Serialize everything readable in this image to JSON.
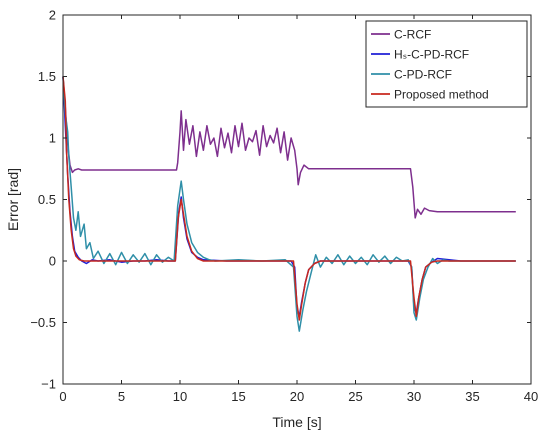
{
  "chart_data": {
    "type": "line",
    "xlabel": "Time [s]",
    "ylabel": "Error [rad]",
    "xlim": [
      0,
      40
    ],
    "ylim": [
      -1,
      2
    ],
    "xticks": [
      0,
      5,
      10,
      15,
      20,
      25,
      30,
      35,
      40
    ],
    "yticks": [
      -1,
      -0.5,
      0,
      0.5,
      1,
      1.5,
      2
    ],
    "xtick_labels": [
      "0",
      "5",
      "10",
      "15",
      "20",
      "25",
      "30",
      "35",
      "40"
    ],
    "ytick_labels": [
      "−1",
      "−0.5",
      "0",
      "0.5",
      "1",
      "1.5",
      "2"
    ],
    "grid": false,
    "legend_position": "top-right",
    "series": [
      {
        "name": "C-RCF",
        "color": "#7E2F8E",
        "x": [
          0,
          0.2,
          0.4,
          0.6,
          0.8,
          1.0,
          1.3,
          1.6,
          2.0,
          3,
          4,
          5,
          6,
          7,
          8,
          9,
          9.7,
          9.8,
          10.0,
          10.1,
          10.3,
          10.5,
          10.8,
          11.1,
          11.4,
          11.7,
          12.0,
          12.3,
          12.6,
          12.9,
          13.2,
          13.5,
          13.8,
          14.1,
          14.4,
          14.7,
          15.0,
          15.3,
          15.6,
          15.9,
          16.2,
          16.5,
          16.8,
          17.1,
          17.4,
          17.7,
          18.0,
          18.3,
          18.6,
          18.9,
          19.2,
          19.5,
          19.8,
          20.0,
          20.1,
          20.3,
          20.6,
          21.0,
          22,
          24,
          26,
          28,
          29,
          29.7,
          29.9,
          30.1,
          30.3,
          30.6,
          30.9,
          31.3,
          32,
          34,
          36,
          38,
          38.7
        ],
        "y": [
          1.5,
          1.25,
          0.95,
          0.78,
          0.72,
          0.74,
          0.75,
          0.74,
          0.74,
          0.74,
          0.74,
          0.74,
          0.74,
          0.74,
          0.74,
          0.74,
          0.74,
          0.8,
          1.05,
          1.22,
          0.9,
          1.15,
          0.95,
          1.1,
          0.85,
          1.05,
          0.9,
          1.1,
          0.95,
          1.0,
          0.85,
          1.08,
          0.92,
          1.04,
          0.88,
          1.1,
          0.93,
          1.12,
          0.9,
          1.0,
          0.97,
          1.06,
          0.86,
          1.1,
          0.93,
          1.02,
          0.96,
          1.08,
          0.88,
          1.05,
          0.82,
          1.0,
          0.9,
          0.75,
          0.62,
          0.72,
          0.78,
          0.75,
          0.75,
          0.75,
          0.75,
          0.75,
          0.75,
          0.75,
          0.6,
          0.35,
          0.42,
          0.38,
          0.43,
          0.41,
          0.4,
          0.4,
          0.4,
          0.4,
          0.4
        ]
      },
      {
        "name": "Hₛ-C-PD-RCF",
        "color": "#1F1FD6",
        "x": [
          0,
          0.2,
          0.4,
          0.6,
          0.8,
          1.0,
          1.3,
          1.6,
          2.0,
          2.5,
          3,
          4,
          5,
          6,
          7,
          8,
          9,
          9.6,
          9.9,
          10.1,
          10.3,
          10.6,
          11.0,
          11.5,
          12,
          14,
          16,
          18,
          19.5,
          19.8,
          20.0,
          20.2,
          20.4,
          20.7,
          21.0,
          21.5,
          22,
          24,
          26,
          28,
          29.5,
          29.8,
          30.0,
          30.2,
          30.4,
          30.7,
          31.0,
          31.5,
          32,
          34,
          36,
          38,
          38.7
        ],
        "y": [
          1.5,
          1.1,
          0.7,
          0.4,
          0.2,
          0.08,
          0.03,
          0.0,
          -0.02,
          0.01,
          0.0,
          0.01,
          -0.01,
          0.0,
          0.0,
          0.01,
          0.0,
          0.0,
          0.4,
          0.52,
          0.35,
          0.18,
          0.07,
          0.03,
          0.01,
          0.0,
          0.0,
          0.0,
          0.0,
          -0.05,
          -0.38,
          -0.45,
          -0.33,
          -0.18,
          -0.07,
          -0.02,
          0.0,
          0.0,
          0.0,
          0.0,
          0.0,
          -0.05,
          -0.38,
          -0.42,
          -0.3,
          -0.15,
          -0.05,
          -0.01,
          0.02,
          0.0,
          0.0,
          0.0,
          0.0
        ]
      },
      {
        "name": "C-PD-RCF",
        "color": "#2F8FA8",
        "x": [
          0,
          0.2,
          0.4,
          0.5,
          0.7,
          0.9,
          1.1,
          1.3,
          1.5,
          1.8,
          2.0,
          2.3,
          2.6,
          3.0,
          3.5,
          4.0,
          4.5,
          5.0,
          5.5,
          6.0,
          6.5,
          7.0,
          7.5,
          8.0,
          8.5,
          9.0,
          9.5,
          9.8,
          10.1,
          10.3,
          10.6,
          11.0,
          11.5,
          12.0,
          12.5,
          13,
          15,
          17,
          19,
          19.7,
          20.0,
          20.2,
          20.5,
          20.8,
          21.2,
          21.6,
          22.0,
          22.5,
          23.0,
          23.5,
          24.0,
          24.5,
          25.0,
          25.5,
          26.0,
          26.5,
          27.0,
          27.5,
          28.0,
          28.5,
          29.0,
          29.5,
          29.8,
          30.0,
          30.2,
          30.5,
          30.8,
          31.2,
          31.6,
          32.0,
          32.5,
          33,
          35,
          37,
          38.7
        ],
        "y": [
          1.5,
          1.2,
          1.05,
          0.85,
          0.6,
          0.35,
          0.25,
          0.4,
          0.2,
          0.3,
          0.1,
          0.15,
          0.02,
          0.08,
          -0.02,
          0.06,
          -0.03,
          0.07,
          -0.02,
          0.05,
          -0.01,
          0.06,
          -0.03,
          0.05,
          -0.01,
          0.03,
          0.0,
          0.45,
          0.65,
          0.5,
          0.3,
          0.15,
          0.07,
          0.03,
          0.01,
          0.0,
          0.01,
          0.0,
          0.01,
          -0.05,
          -0.45,
          -0.57,
          -0.4,
          -0.25,
          -0.1,
          0.05,
          -0.05,
          0.03,
          -0.02,
          0.05,
          -0.03,
          0.04,
          -0.02,
          0.03,
          -0.03,
          0.05,
          -0.01,
          0.04,
          -0.02,
          0.03,
          0.0,
          0.01,
          -0.05,
          -0.42,
          -0.48,
          -0.3,
          -0.15,
          -0.05,
          0.02,
          -0.02,
          0.01,
          0.0,
          0.0,
          0.0,
          0.0
        ]
      },
      {
        "name": "Proposed method",
        "color": "#C8281E",
        "x": [
          0,
          0.2,
          0.3,
          0.5,
          0.7,
          0.9,
          1.1,
          1.4,
          1.8,
          2.5,
          4,
          6,
          8,
          9.6,
          9.85,
          10.1,
          10.3,
          10.6,
          11.0,
          11.5,
          12,
          14,
          16,
          18,
          19.7,
          20.0,
          20.2,
          20.4,
          20.7,
          21.0,
          21.5,
          22,
          24,
          26,
          28,
          29.7,
          30.0,
          30.2,
          30.4,
          30.7,
          31.0,
          31.5,
          32,
          34,
          36,
          38,
          38.7
        ],
        "y": [
          1.5,
          1.3,
          0.9,
          0.5,
          0.25,
          0.1,
          0.04,
          0.01,
          0.0,
          0.0,
          0.0,
          0.0,
          0.0,
          0.0,
          0.35,
          0.5,
          0.38,
          0.2,
          0.08,
          0.02,
          0.0,
          0.0,
          0.0,
          0.0,
          0.0,
          -0.35,
          -0.48,
          -0.35,
          -0.18,
          -0.07,
          -0.02,
          0.0,
          0.0,
          0.0,
          0.0,
          0.0,
          -0.3,
          -0.45,
          -0.3,
          -0.15,
          -0.05,
          -0.01,
          0.0,
          0.0,
          0.0,
          0.0,
          0.0
        ]
      }
    ]
  }
}
